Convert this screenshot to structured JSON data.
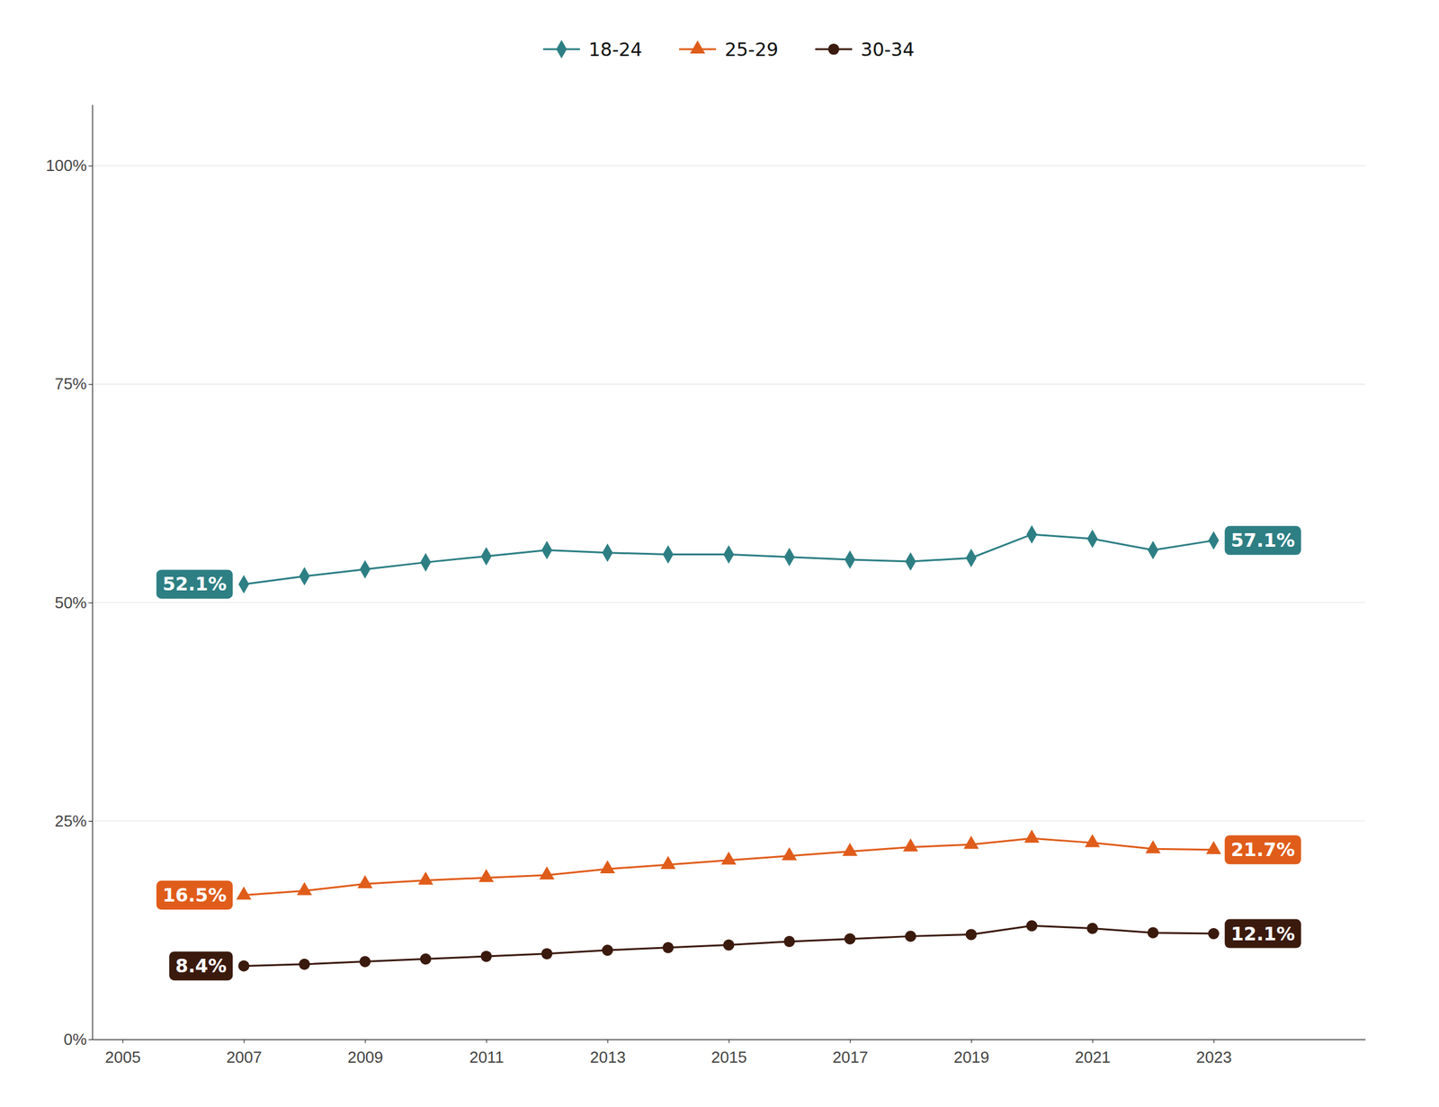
{
  "chart_data": {
    "type": "line",
    "x": [
      2007,
      2008,
      2009,
      2010,
      2011,
      2012,
      2013,
      2014,
      2015,
      2016,
      2017,
      2018,
      2019,
      2020,
      2021,
      2022,
      2023
    ],
    "series": [
      {
        "name": "18-24",
        "color": "#2d7f84",
        "marker": "diamond",
        "values": [
          52.1,
          53.0,
          53.8,
          54.6,
          55.3,
          56.0,
          55.7,
          55.5,
          55.5,
          55.2,
          54.9,
          54.7,
          55.1,
          57.8,
          57.3,
          56.0,
          57.1
        ]
      },
      {
        "name": "25-29",
        "color": "#e05c1a",
        "marker": "triangle",
        "values": [
          16.5,
          17.0,
          17.8,
          18.2,
          18.5,
          18.8,
          19.5,
          20.0,
          20.5,
          21.0,
          21.5,
          22.0,
          22.3,
          23.0,
          22.5,
          21.8,
          21.7
        ]
      },
      {
        "name": "30-34",
        "color": "#3b1a0e",
        "marker": "circle",
        "values": [
          8.4,
          8.6,
          8.9,
          9.2,
          9.5,
          9.8,
          10.2,
          10.5,
          10.8,
          11.2,
          11.5,
          11.8,
          12.0,
          13.0,
          12.7,
          12.2,
          12.1
        ]
      }
    ],
    "annotations": [
      {
        "text": "52.1%",
        "x": 2007,
        "y": 52.1,
        "color": "#2d7f84"
      },
      {
        "text": "16.5%",
        "x": 2007,
        "y": 16.5,
        "color": "#e05c1a"
      },
      {
        "text": "8.4%",
        "x": 2007,
        "y": 8.4,
        "color": "#3b1a0e"
      },
      {
        "text": "57.1%",
        "x": 2023,
        "y": 57.1,
        "color": "#2d7f84"
      },
      {
        "text": "21.7%",
        "x": 2023,
        "y": 21.7,
        "color": "#e05c1a"
      },
      {
        "text": "12.1%",
        "x": 2023,
        "y": 12.1,
        "color": "#3b1a0e"
      }
    ],
    "xlim": [
      2004.5,
      2025.5
    ],
    "xticks": [
      2005,
      2007,
      2009,
      2011,
      2013,
      2015,
      2017,
      2019,
      2021,
      2023
    ],
    "ylim": [
      0,
      107
    ],
    "yticks": [
      {
        "value": 0,
        "label": "0%"
      },
      {
        "value": 25,
        "label": "25%"
      },
      {
        "value": 50,
        "label": "50%"
      },
      {
        "value": 75,
        "label": "75%"
      },
      {
        "value": 100,
        "label": "100%"
      }
    ],
    "grid": true,
    "legend": "top"
  }
}
